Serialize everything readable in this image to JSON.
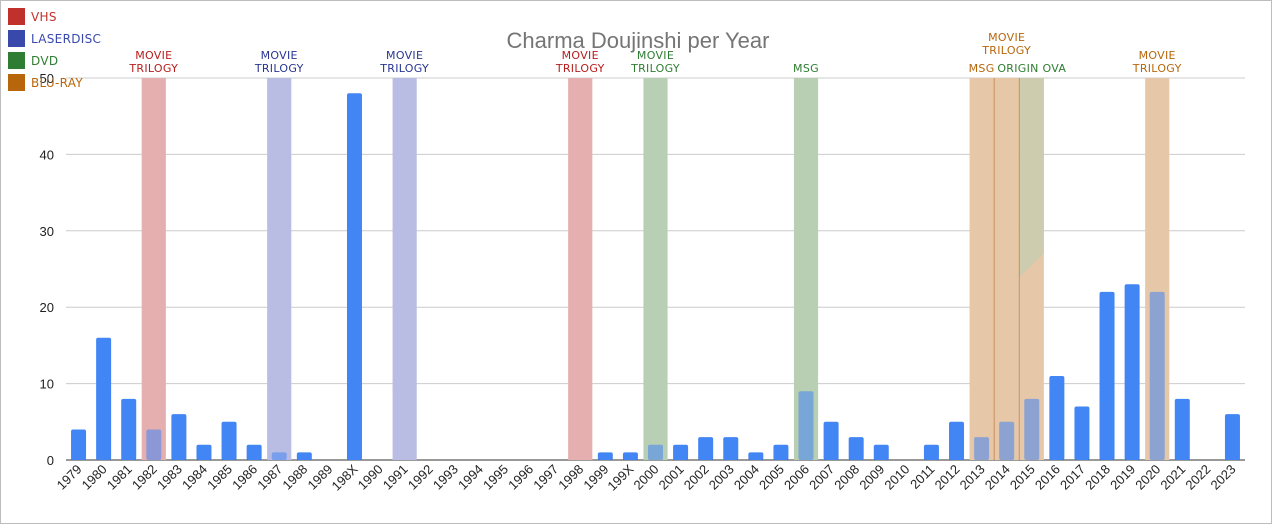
{
  "chart_data": {
    "type": "bar",
    "title": "Charma Doujinshi per Year",
    "xlabel": "",
    "ylabel": "",
    "ylim": [
      0,
      50
    ],
    "yticks": [
      0,
      10,
      20,
      30,
      40,
      50
    ],
    "grid": true,
    "legend_position": "top-left",
    "categories": [
      "1979",
      "1980",
      "1981",
      "1982",
      "1983",
      "1984",
      "1985",
      "1986",
      "1987",
      "1988",
      "1989",
      "198X",
      "1990",
      "1991",
      "1992",
      "1993",
      "1994",
      "1995",
      "1996",
      "1997",
      "1998",
      "1999",
      "199X",
      "2000",
      "2001",
      "2002",
      "2003",
      "2004",
      "2005",
      "2006",
      "2007",
      "2008",
      "2009",
      "2010",
      "2011",
      "2012",
      "2013",
      "2014",
      "2015",
      "2016",
      "2017",
      "2018",
      "2019",
      "2020",
      "2021",
      "2022",
      "2023"
    ],
    "series": [
      {
        "values": [
          4,
          16,
          8,
          4,
          6,
          2,
          5,
          2,
          1,
          1,
          0,
          48,
          0,
          0,
          0,
          0,
          0,
          0,
          0,
          0,
          0,
          1,
          1,
          2,
          2,
          3,
          3,
          1,
          2,
          9,
          5,
          3,
          2,
          0,
          2,
          5,
          3,
          5,
          8,
          11,
          7,
          22,
          23,
          22,
          8,
          0,
          6
        ],
        "color": "#4285f4"
      }
    ],
    "legend": [
      {
        "label": "VHS",
        "color": "#c0312b"
      },
      {
        "label": "LASERDISC",
        "color": "#3949ab"
      },
      {
        "label": "DVD",
        "color": "#2e7d32"
      },
      {
        "label": "BLU-RAY",
        "color": "#b8660b"
      }
    ],
    "annotations": [
      {
        "category": "1982",
        "medium": "VHS",
        "lines": [
          "MOVIE",
          "TRILOGY"
        ],
        "band_color": "#e6b0b0",
        "text_color": "#b71c1c"
      },
      {
        "category": "1987",
        "medium": "LASERDISC",
        "lines": [
          "MOVIE",
          "TRILOGY"
        ],
        "band_color": "#bbbde3",
        "text_color": "#283593"
      },
      {
        "category": "1991",
        "medium": "LASERDISC",
        "lines": [
          "MOVIE",
          "TRILOGY"
        ],
        "band_color": "#bbbde3",
        "text_color": "#283593"
      },
      {
        "category": "1998",
        "medium": "VHS",
        "lines": [
          "MOVIE",
          "TRILOGY"
        ],
        "band_color": "#e6b0b0",
        "text_color": "#b71c1c"
      },
      {
        "category": "2000",
        "medium": "DVD",
        "lines": [
          "MOVIE",
          "TRILOGY"
        ],
        "band_color": "#b8cfb4",
        "text_color": "#2e7d32"
      },
      {
        "category": "2006",
        "medium": "DVD",
        "lines": [
          "MSG"
        ],
        "band_color": "#b8cfb4",
        "text_color": "#2e7d32"
      },
      {
        "category": "2013",
        "medium": "BLU-RAY",
        "lines": [
          "MSG"
        ],
        "band_color": "#e6c8a8",
        "text_color": "#b8660b"
      },
      {
        "category": "2014",
        "medium": "BLU-RAY",
        "lines": [
          "MOVIE",
          "TRILOGY"
        ],
        "band_color": "#e6c8a8",
        "text_color": "#b8660b"
      },
      {
        "category": "2015",
        "medium": "DVD / BLU-RAY",
        "lines": [
          "ORIGIN OVA"
        ],
        "band_color": "#b8cfb4",
        "band_color_lower": "#e6c8a8",
        "text_color": "#2e7d32"
      },
      {
        "category": "2020",
        "medium": "BLU-RAY",
        "lines": [
          "MOVIE",
          "TRILOGY"
        ],
        "band_color": "#e6c8a8",
        "text_color": "#b8660b"
      }
    ]
  }
}
